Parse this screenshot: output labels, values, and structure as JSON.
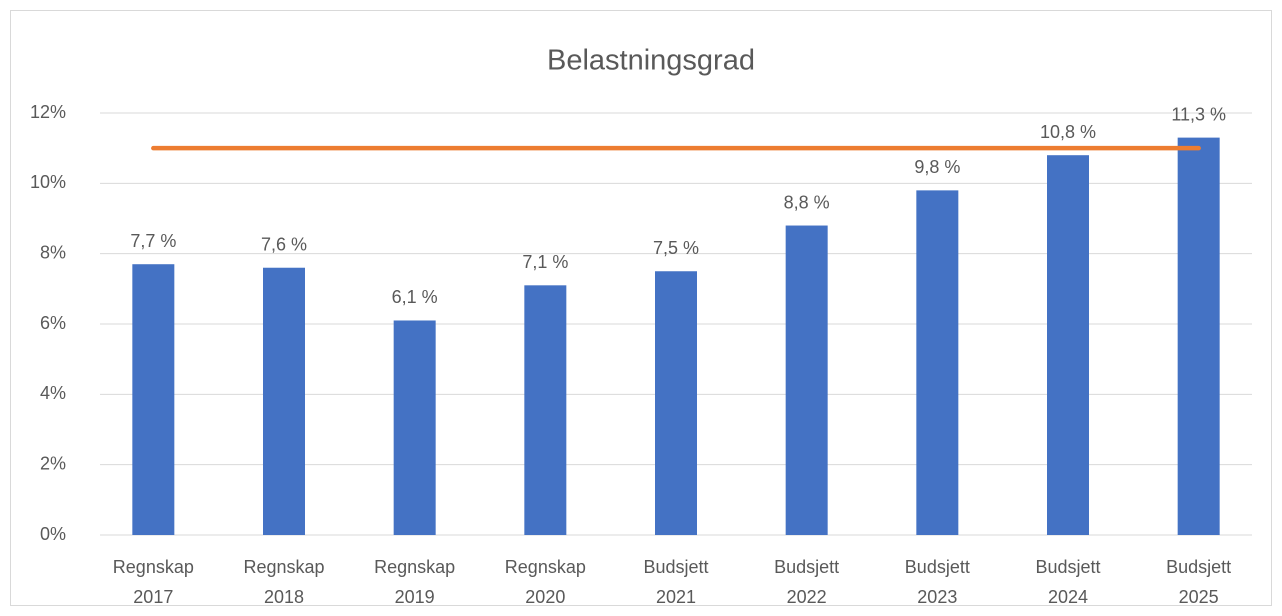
{
  "chart_data": {
    "type": "bar",
    "title": "Belastningsgrad",
    "categories": [
      "Regnskap 2017",
      "Regnskap 2018",
      "Regnskap 2019",
      "Regnskap 2020",
      "Budsjett 2021",
      "Budsjett 2022",
      "Budsjett 2023",
      "Budsjett 2024",
      "Budsjett 2025"
    ],
    "series": [
      {
        "color": "#4472c4",
        "values": [
          7.7,
          7.6,
          6.1,
          7.1,
          7.5,
          8.8,
          9.8,
          10.8,
          11.3
        ],
        "value_labels": [
          "7,7 %",
          "7,6 %",
          "6,1 %",
          "7,1 %",
          "7,5 %",
          "8,8 %",
          "9,8 %",
          "10,8 %",
          "11,3 %"
        ]
      },
      {
        "type": "line",
        "color": "#ed7d31",
        "values": [
          11,
          11,
          11,
          11,
          11,
          11,
          11,
          11,
          11
        ]
      }
    ],
    "ylim": [
      0,
      12
    ],
    "yticks": [
      {
        "value": 0,
        "label": "0%"
      },
      {
        "value": 2,
        "label": "2%"
      },
      {
        "value": 4,
        "label": "4%"
      },
      {
        "value": 6,
        "label": "6%"
      },
      {
        "value": 8,
        "label": "8%"
      },
      {
        "value": 10,
        "label": "10%"
      },
      {
        "value": 12,
        "label": "12%"
      }
    ],
    "grid": true
  }
}
